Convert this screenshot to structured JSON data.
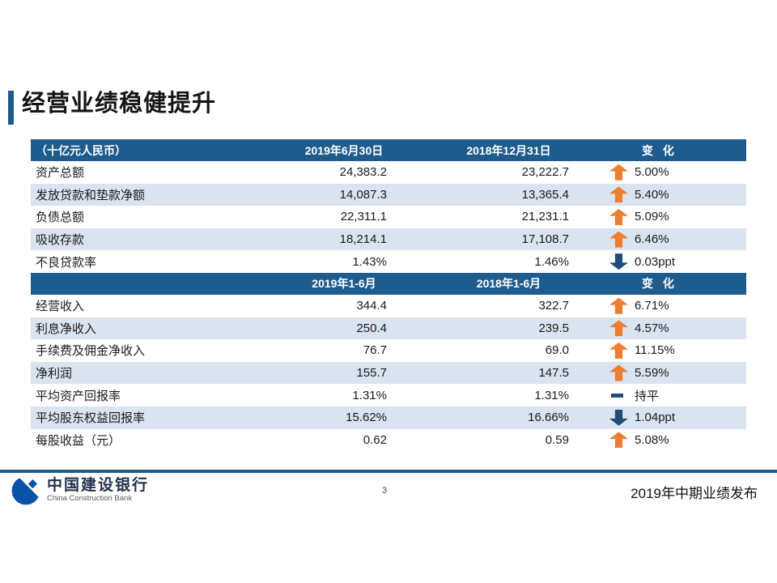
{
  "slide": {
    "title": "经营业绩稳健提升"
  },
  "table": {
    "section1": {
      "header": {
        "unit": "（十亿元人民币）",
        "col2019": "2019年6月30日",
        "col2018": "2018年12月31日",
        "change": "变 化"
      },
      "rows": [
        {
          "label": "资产总额",
          "current": "24,383.2",
          "prior": "23,222.7",
          "direction": "up",
          "change": "5.00%"
        },
        {
          "label": "发放贷款和垫款净额",
          "current": "14,087.3",
          "prior": "13,365.4",
          "direction": "up",
          "change": "5.40%"
        },
        {
          "label": "负债总额",
          "current": "22,311.1",
          "prior": "21,231.1",
          "direction": "up",
          "change": "5.09%"
        },
        {
          "label": "吸收存款",
          "current": "18,214.1",
          "prior": "17,108.7",
          "direction": "up",
          "change": "6.46%"
        },
        {
          "label": "不良贷款率",
          "current": "1.43%",
          "prior": "1.46%",
          "direction": "down",
          "change": "0.03ppt"
        }
      ]
    },
    "section2": {
      "header": {
        "unit": "",
        "col2019": "2019年1-6月",
        "col2018": "2018年1-6月",
        "change": "变 化"
      },
      "rows": [
        {
          "label": "经营收入",
          "current": "344.4",
          "prior": "322.7",
          "direction": "up",
          "change": "6.71%"
        },
        {
          "label": "利息净收入",
          "current": "250.4",
          "prior": "239.5",
          "direction": "up",
          "change": "4.57%"
        },
        {
          "label": "手续费及佣金净收入",
          "current": "76.7",
          "prior": "69.0",
          "direction": "up",
          "change": "11.15%"
        },
        {
          "label": "净利润",
          "current": "155.7",
          "prior": "147.5",
          "direction": "up",
          "change": "5.59%"
        },
        {
          "label": "平均资产回报率",
          "current": "1.31%",
          "prior": "1.31%",
          "direction": "flat",
          "change": "持平"
        },
        {
          "label": "平均股东权益回报率",
          "current": "15.62%",
          "prior": "16.66%",
          "direction": "down",
          "change": "1.04ppt"
        },
        {
          "label": "每股收益（元）",
          "current": "0.62",
          "prior": "0.59",
          "direction": "up",
          "change": "5.08%"
        }
      ]
    }
  },
  "footer": {
    "bank_cn": "中国建设银行",
    "bank_en": "China Construction Bank",
    "page_number": "3",
    "caption": "2019年中期业绩发布"
  },
  "colors": {
    "header_blue": "#1E5C8E",
    "stripe_blue": "#DAE3F0",
    "up_orange": "#ED7D31",
    "down_navy": "#1F4E79",
    "accent_blue": "#1F5C8E",
    "logo_blue": "#0A52A5",
    "footer_line": "#1F5C8E"
  }
}
